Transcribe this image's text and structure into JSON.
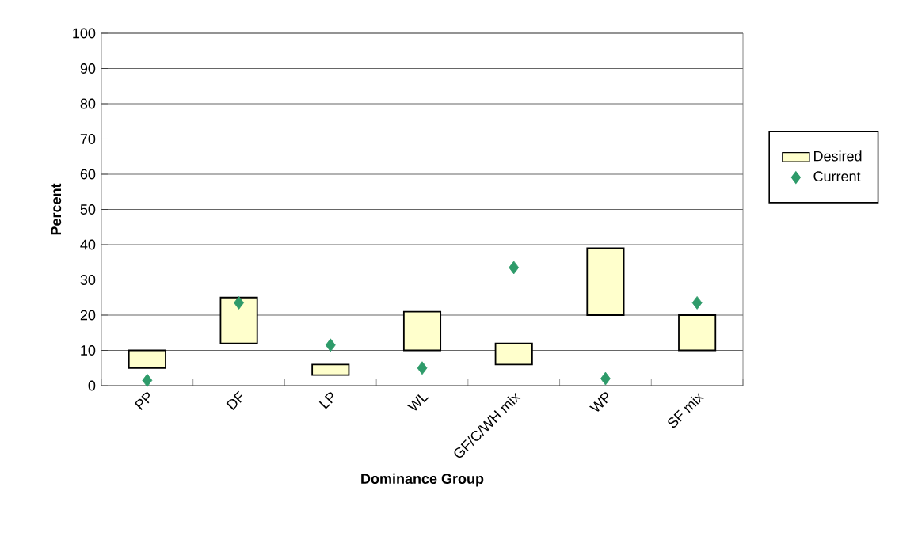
{
  "chart_data": {
    "type": "bar",
    "xlabel": "Dominance Group",
    "ylabel": "Percent",
    "categories": [
      "PP",
      "DF",
      "LP",
      "WL",
      "GF/C/WH mix",
      "WP",
      "SF mix"
    ],
    "ylim": [
      0,
      100
    ],
    "yticks": [
      0,
      10,
      20,
      30,
      40,
      50,
      60,
      70,
      80,
      90,
      100
    ],
    "grid": "y",
    "legend": "right",
    "series": [
      {
        "name": "Desired",
        "color": "#ffffcc",
        "base": [
          5,
          12,
          3,
          10,
          6,
          20,
          10
        ],
        "values": [
          5,
          13,
          3,
          11,
          6,
          19,
          10
        ]
      },
      {
        "name": "Current",
        "type": "scatter",
        "color": "#2e9b6a",
        "marker": "diamond",
        "values": [
          1.5,
          23.5,
          11.5,
          5,
          33.5,
          2,
          23.5
        ]
      }
    ]
  }
}
